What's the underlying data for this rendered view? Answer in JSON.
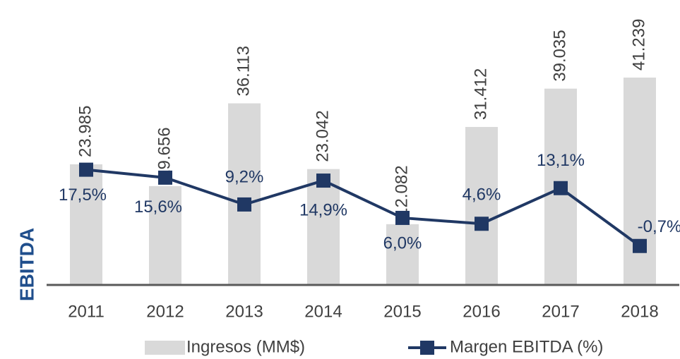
{
  "chart_data": {
    "type": "bar_line",
    "ylabel": "EBITDA",
    "categories": [
      "2011",
      "2012",
      "2013",
      "2014",
      "2015",
      "2016",
      "2017",
      "2018"
    ],
    "series": [
      {
        "name": "Ingresos (MM$)",
        "type": "bar",
        "color": "#d9d9d9",
        "values": [
          23.985,
          19.656,
          36.113,
          23.042,
          12.082,
          31.412,
          39.035,
          41.239
        ]
      },
      {
        "name": "Margen EBITDA (%)",
        "type": "line",
        "axis": "y2",
        "color": "#203864",
        "values": [
          17.5,
          15.6,
          9.2,
          14.9,
          6.0,
          4.6,
          13.1,
          -0.7
        ],
        "value_labels": [
          "17,5%",
          "15,6%",
          "9,2%",
          "14,9%",
          "6,0%",
          "4,6%",
          "13,1%",
          "-0,7%"
        ]
      }
    ],
    "ylim": [
      0,
      50
    ],
    "y2lim": [
      -10,
      50
    ],
    "legend": "bottom"
  }
}
